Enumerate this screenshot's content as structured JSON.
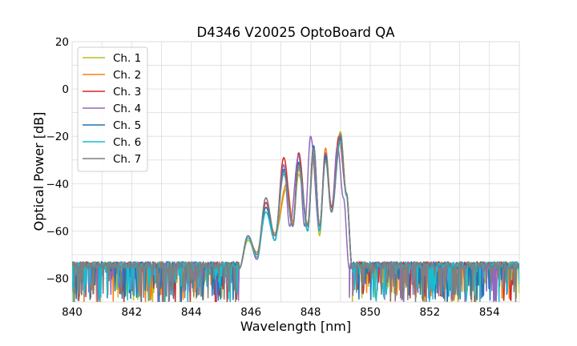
{
  "chart_data": {
    "type": "line",
    "title": "D4346 V20025 OptoBoard QA",
    "xlabel": "Wavelength [nm]",
    "ylabel": "Optical Power [dB]",
    "xlim": [
      840,
      855
    ],
    "ylim": [
      -90,
      20
    ],
    "xticks": [
      840,
      842,
      844,
      846,
      848,
      850,
      852,
      854
    ],
    "yticks": [
      -80,
      -60,
      -40,
      -20,
      0,
      20
    ],
    "grid": true,
    "legend_position": "top-left",
    "noise_floor_db": -76,
    "series": [
      {
        "name": "Ch. 1",
        "color": "#bcbd22",
        "x": [
          845.6,
          845.9,
          846.2,
          846.5,
          846.8,
          847.2,
          847.4,
          847.6,
          847.9,
          848.1,
          848.3,
          848.5,
          848.7,
          849.0,
          849.2,
          849.4
        ],
        "y": [
          -76,
          -64,
          -70,
          -52,
          -62,
          -42,
          -57,
          -36,
          -58,
          -30,
          -62,
          -27,
          -52,
          -18,
          -45,
          -76
        ]
      },
      {
        "name": "Ch. 2",
        "color": "#ff7f0e",
        "x": [
          845.6,
          845.9,
          846.2,
          846.5,
          846.8,
          847.2,
          847.4,
          847.6,
          847.9,
          848.1,
          848.3,
          848.5,
          848.7,
          849.0,
          849.2,
          849.4
        ],
        "y": [
          -76,
          -63,
          -69,
          -50,
          -61,
          -40,
          -56,
          -34,
          -57,
          -28,
          -60,
          -25,
          -50,
          -20,
          -45,
          -76
        ]
      },
      {
        "name": "Ch. 3",
        "color": "#d62728",
        "x": [
          845.6,
          845.9,
          846.2,
          846.5,
          846.8,
          847.1,
          847.4,
          847.6,
          847.9,
          848.1,
          848.3,
          848.5,
          848.7,
          848.95,
          849.2,
          849.4
        ],
        "y": [
          -76,
          -62,
          -72,
          -48,
          -64,
          -29,
          -58,
          -27,
          -60,
          -24,
          -58,
          -29,
          -50,
          -20,
          -44,
          -76
        ]
      },
      {
        "name": "Ch. 4",
        "color": "#9467bd",
        "x": [
          845.6,
          845.9,
          846.2,
          846.5,
          846.8,
          847.1,
          847.3,
          847.6,
          847.8,
          848.0,
          848.3,
          848.5,
          848.7,
          848.9,
          849.1,
          849.3
        ],
        "y": [
          -76,
          -62,
          -72,
          -46,
          -64,
          -32,
          -58,
          -28,
          -58,
          -20,
          -60,
          -27,
          -52,
          -24,
          -46,
          -76
        ]
      },
      {
        "name": "Ch. 5",
        "color": "#1f77b4",
        "x": [
          845.6,
          845.9,
          846.2,
          846.5,
          846.8,
          847.1,
          847.4,
          847.6,
          847.9,
          848.1,
          848.3,
          848.5,
          848.7,
          849.0,
          849.2,
          849.4
        ],
        "y": [
          -76,
          -62,
          -70,
          -50,
          -62,
          -34,
          -58,
          -31,
          -58,
          -24,
          -58,
          -28,
          -52,
          -20,
          -44,
          -76
        ]
      },
      {
        "name": "Ch. 6",
        "color": "#17becf",
        "x": [
          845.6,
          845.9,
          846.2,
          846.5,
          846.8,
          847.1,
          847.4,
          847.6,
          847.9,
          848.1,
          848.3,
          848.5,
          848.7,
          849.0,
          849.2,
          849.4
        ],
        "y": [
          -76,
          -63,
          -71,
          -52,
          -64,
          -36,
          -58,
          -33,
          -60,
          -26,
          -60,
          -30,
          -52,
          -22,
          -45,
          -76
        ]
      },
      {
        "name": "Ch. 7",
        "color": "#7f7f7f",
        "x": [
          845.6,
          845.9,
          846.2,
          846.5,
          846.8,
          847.1,
          847.4,
          847.6,
          847.9,
          848.1,
          848.3,
          848.5,
          848.7,
          849.0,
          849.2,
          849.4
        ],
        "y": [
          -76,
          -62,
          -70,
          -46,
          -62,
          -35,
          -58,
          -32,
          -58,
          -25,
          -58,
          -30,
          -52,
          -19,
          -44,
          -76
        ]
      }
    ]
  }
}
